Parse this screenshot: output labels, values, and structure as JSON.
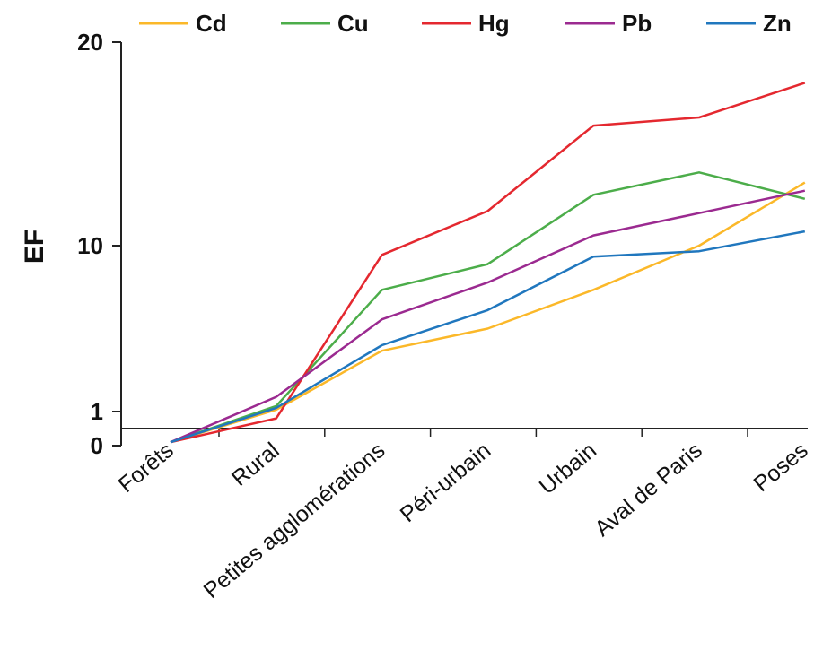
{
  "chart_data": {
    "type": "line",
    "title": "",
    "xlabel": "",
    "ylabel": "EF",
    "categories": [
      "Forêts",
      "Rural",
      "Petites agglomérations",
      "Péri-urbain",
      "Urbain",
      "Aval de Paris",
      "Poses"
    ],
    "yticks": [
      {
        "value": 0,
        "label": "0"
      },
      {
        "value": 1,
        "label": "1"
      },
      {
        "value": 10,
        "label": "10"
      },
      {
        "value": 20,
        "label": "20"
      }
    ],
    "ylim": [
      0,
      20
    ],
    "grid": false,
    "legend_position": "top",
    "series": [
      {
        "name": "Cd",
        "color": "#fbb829",
        "values": [
          0.1,
          1.1,
          4.3,
          5.5,
          7.6,
          10.0,
          13.1
        ]
      },
      {
        "name": "Cu",
        "color": "#4cad4a",
        "values": [
          0.1,
          1.3,
          7.6,
          9.0,
          12.5,
          13.6,
          12.3
        ]
      },
      {
        "name": "Hg",
        "color": "#e4282f",
        "values": [
          0.1,
          0.8,
          9.5,
          11.7,
          15.9,
          16.3,
          18.0
        ]
      },
      {
        "name": "Pb",
        "color": "#9b2a90",
        "values": [
          0.1,
          1.8,
          6.0,
          8.0,
          10.5,
          11.6,
          12.7
        ]
      },
      {
        "name": "Zn",
        "color": "#2077be",
        "values": [
          0.1,
          1.2,
          4.6,
          6.5,
          9.4,
          9.7,
          10.7
        ]
      }
    ]
  }
}
